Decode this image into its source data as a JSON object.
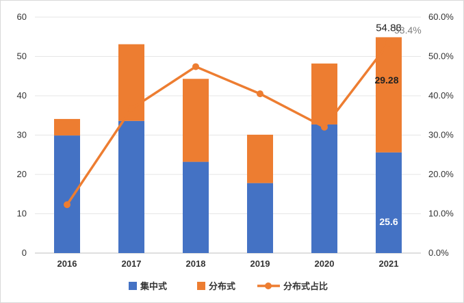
{
  "chart_data": {
    "type": "bar",
    "stacked": true,
    "categories": [
      "2016",
      "2017",
      "2018",
      "2019",
      "2020",
      "2021"
    ],
    "series": [
      {
        "name": "集中式",
        "type": "bar",
        "axis": "left",
        "color": "#4472C4",
        "values": [
          29.9,
          33.6,
          23.2,
          17.8,
          32.7,
          25.6
        ]
      },
      {
        "name": "分布式",
        "type": "bar",
        "axis": "left",
        "color": "#ED7D31",
        "values": [
          4.2,
          19.5,
          21.1,
          12.3,
          15.5,
          29.28
        ]
      },
      {
        "name": "分布式占比",
        "type": "line",
        "axis": "right",
        "color": "#ED7D31",
        "values": [
          12.3,
          36.7,
          47.4,
          40.5,
          32.0,
          53.4
        ]
      }
    ],
    "y_left": {
      "min": 0,
      "max": 60,
      "step": 10,
      "ticks": [
        "0",
        "10",
        "20",
        "30",
        "40",
        "50",
        "60"
      ]
    },
    "y_right": {
      "min": 0,
      "max": 60,
      "step": 10,
      "ticks": [
        "0.0%",
        "10.0%",
        "20.0%",
        "30.0%",
        "40.0%",
        "50.0%",
        "60.0%"
      ]
    },
    "annotations": {
      "total_2021": "54.88",
      "distributed_2021": "29.28",
      "centralized_2021": "25.6",
      "share_2021": "53.4%"
    },
    "grid": true,
    "legend": "bottom",
    "title": "",
    "xlabel": "",
    "ylabel": ""
  }
}
